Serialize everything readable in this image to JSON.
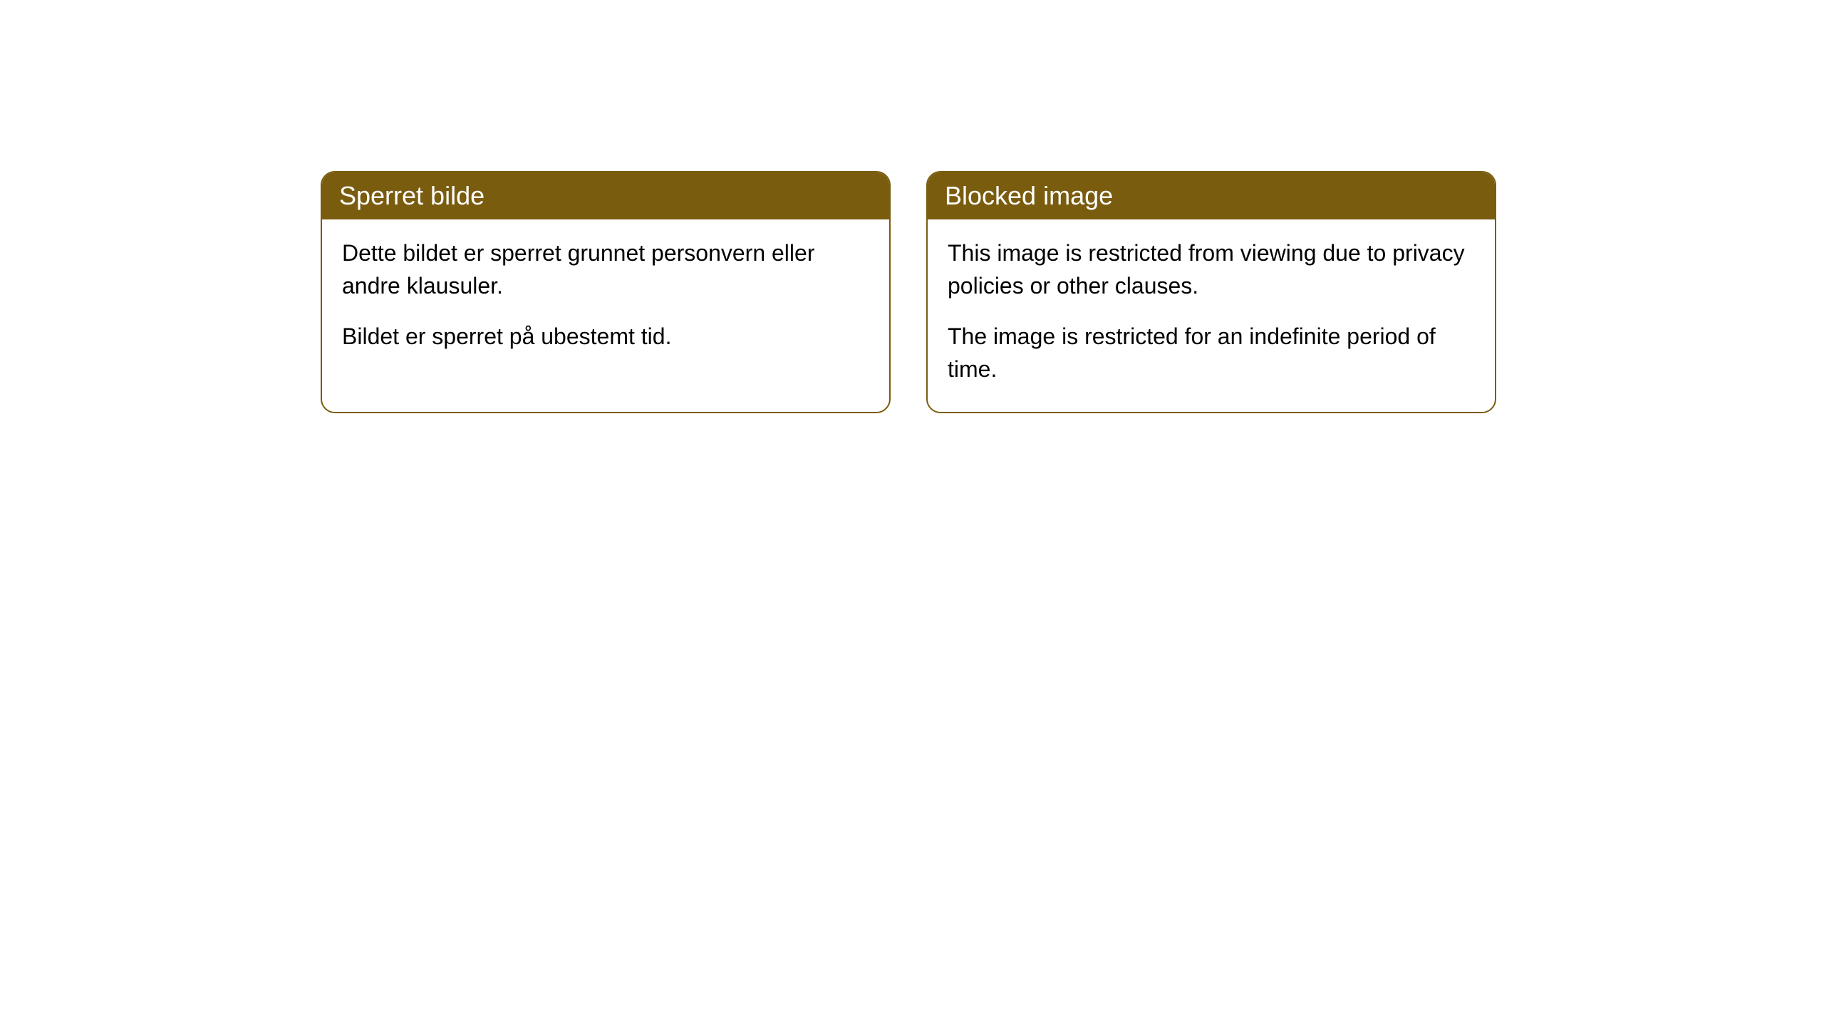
{
  "cards": [
    {
      "title": "Sperret bilde",
      "paragraph1": "Dette bildet er sperret grunnet personvern eller andre klausuler.",
      "paragraph2": "Bildet er sperret på ubestemt tid."
    },
    {
      "title": "Blocked image",
      "paragraph1": "This image is restricted from viewing due to privacy policies or other clauses.",
      "paragraph2": "The image is restricted for an indefinite period of time."
    }
  ],
  "styling": {
    "header_bg_color": "#7a5c0f",
    "header_text_color": "#ffffff",
    "border_color": "#7a5c0f",
    "body_text_color": "#000000",
    "background_color": "#ffffff",
    "border_radius": 20,
    "header_fontsize": 36,
    "body_fontsize": 32
  }
}
